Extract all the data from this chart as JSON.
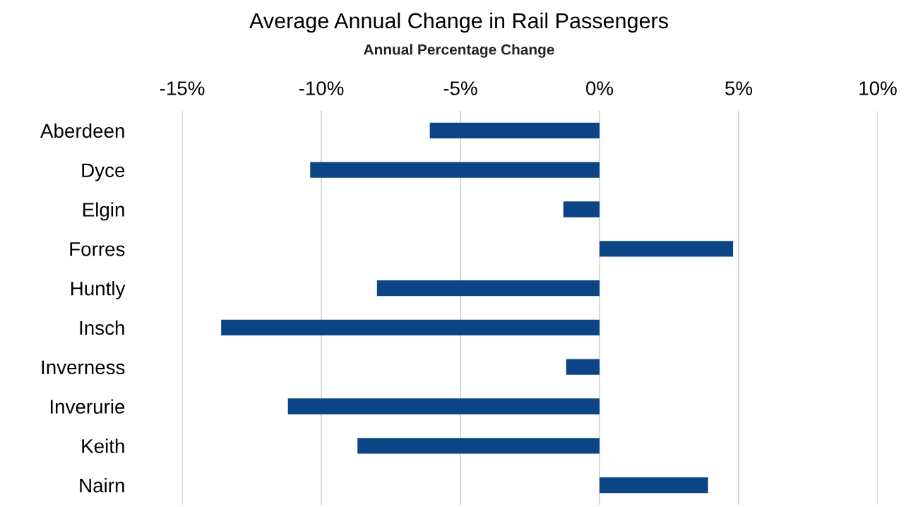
{
  "chart_data": {
    "type": "bar",
    "orientation": "horizontal",
    "title": "Average Annual Change in Rail Passengers",
    "xlabel": "Annual Percentage Change",
    "categories": [
      "Aberdeen",
      "Dyce",
      "Elgin",
      "Forres",
      "Huntly",
      "Insch",
      "Inverness",
      "Inverurie",
      "Keith",
      "Nairn"
    ],
    "values": [
      -6.1,
      -10.4,
      -1.3,
      4.8,
      -8.0,
      -13.6,
      -1.2,
      -11.2,
      -8.7,
      3.9
    ],
    "color": "#0b4586",
    "xlim": [
      -15,
      10
    ],
    "xticks": [
      {
        "value": -15,
        "label": "-15%"
      },
      {
        "value": -10,
        "label": "-10%"
      },
      {
        "value": -5,
        "label": "-5%"
      },
      {
        "value": 0,
        "label": "0%"
      },
      {
        "value": 5,
        "label": "5%"
      },
      {
        "value": 10,
        "label": "10%"
      }
    ],
    "grid": "x",
    "legend": false
  }
}
